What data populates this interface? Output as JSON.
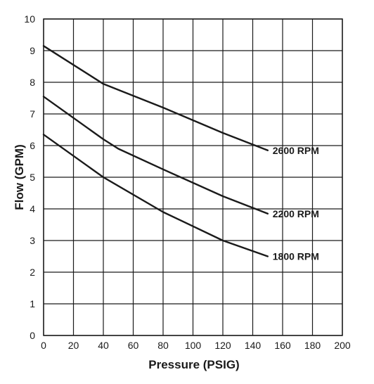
{
  "chart_data": {
    "type": "line",
    "title": "",
    "xlabel": "Pressure (PSIG)",
    "ylabel": "Flow (GPM)",
    "xlim": [
      0,
      200
    ],
    "ylim": [
      0,
      10
    ],
    "xticks": [
      "0",
      "20",
      "40",
      "60",
      "80",
      "100",
      "120",
      "140",
      "160",
      "180",
      "200"
    ],
    "yticks": [
      "0",
      "1",
      "2",
      "3",
      "4",
      "5",
      "6",
      "7",
      "8",
      "9",
      "10"
    ],
    "grid": true,
    "legend": "none",
    "series": [
      {
        "name": "2600 RPM",
        "x": [
          0,
          40,
          80,
          120,
          150
        ],
        "y": [
          9.15,
          7.95,
          7.2,
          6.4,
          5.85
        ]
      },
      {
        "name": "2200 RPM",
        "x": [
          0,
          40,
          50,
          80,
          120,
          150
        ],
        "y": [
          7.55,
          6.2,
          5.9,
          5.25,
          4.4,
          3.85
        ]
      },
      {
        "name": "1800 RPM",
        "x": [
          0,
          40,
          80,
          120,
          150
        ],
        "y": [
          6.35,
          5.0,
          3.9,
          3.0,
          2.5
        ]
      }
    ]
  }
}
